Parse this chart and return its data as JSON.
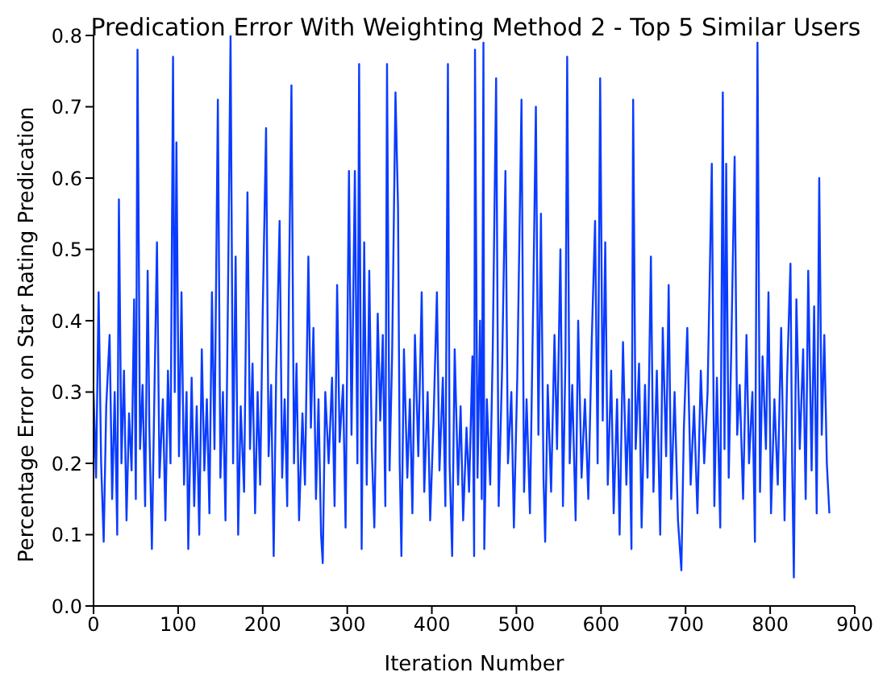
{
  "chart_data": {
    "type": "line",
    "title": "Predication Error With Weighting Method 2 - Top 5 Similar Users",
    "xlabel": "Iteration Number",
    "ylabel": "Percentage Error on Star Rating Predication",
    "x": [
      0,
      3,
      6,
      9,
      12,
      15,
      19,
      22,
      25,
      28,
      30,
      33,
      36,
      39,
      42,
      45,
      48,
      50,
      52,
      55,
      58,
      61,
      64,
      66,
      69,
      72,
      75,
      78,
      82,
      85,
      88,
      91,
      94,
      96,
      98,
      101,
      104,
      107,
      110,
      112,
      116,
      119,
      122,
      125,
      128,
      131,
      134,
      137,
      140,
      143,
      147,
      150,
      153,
      156,
      159,
      162,
      165,
      168,
      171,
      174,
      178,
      182,
      185,
      188,
      191,
      194,
      197,
      200,
      204,
      207,
      210,
      213,
      216,
      220,
      223,
      226,
      229,
      231,
      234,
      237,
      240,
      243,
      247,
      250,
      254,
      257,
      260,
      263,
      266,
      269,
      271,
      274,
      278,
      282,
      285,
      288,
      291,
      295,
      298,
      302,
      305,
      309,
      312,
      314,
      317,
      320,
      323,
      326,
      329,
      332,
      336,
      339,
      342,
      345,
      347,
      350,
      353,
      357,
      360,
      362,
      364,
      367,
      371,
      374,
      377,
      380,
      384,
      388,
      391,
      395,
      398,
      402,
      406,
      409,
      413,
      416,
      419,
      421,
      424,
      427,
      431,
      434,
      437,
      441,
      444,
      448,
      450,
      451,
      454,
      457,
      459,
      461,
      462,
      465,
      469,
      472,
      476,
      479,
      483,
      487,
      490,
      494,
      497,
      501,
      506,
      509,
      512,
      516,
      520,
      523,
      526,
      529,
      532,
      534,
      537,
      541,
      545,
      548,
      552,
      555,
      558,
      560,
      563,
      566,
      570,
      573,
      577,
      581,
      585,
      589,
      593,
      596,
      599,
      602,
      605,
      608,
      612,
      615,
      619,
      622,
      626,
      630,
      633,
      636,
      638,
      641,
      645,
      648,
      652,
      655,
      659,
      662,
      666,
      670,
      673,
      677,
      680,
      683,
      687,
      691,
      695,
      698,
      702,
      706,
      710,
      714,
      718,
      722,
      726,
      731,
      734,
      737,
      741,
      744,
      746,
      748,
      751,
      754,
      758,
      761,
      764,
      768,
      772,
      775,
      779,
      782,
      785,
      788,
      791,
      795,
      798,
      801,
      805,
      809,
      813,
      817,
      820,
      824,
      826,
      828,
      831,
      835,
      839,
      842,
      845,
      849,
      852,
      855,
      858,
      861,
      864,
      867,
      870
    ],
    "series": [
      {
        "color": "#0a3cff",
        "values": [
          0.3,
          0.18,
          0.44,
          0.2,
          0.09,
          0.28,
          0.38,
          0.15,
          0.3,
          0.1,
          0.57,
          0.2,
          0.33,
          0.12,
          0.27,
          0.19,
          0.43,
          0.15,
          0.78,
          0.22,
          0.31,
          0.14,
          0.47,
          0.25,
          0.08,
          0.3,
          0.51,
          0.18,
          0.29,
          0.12,
          0.33,
          0.2,
          0.77,
          0.3,
          0.65,
          0.21,
          0.44,
          0.17,
          0.3,
          0.08,
          0.32,
          0.14,
          0.28,
          0.1,
          0.36,
          0.19,
          0.29,
          0.13,
          0.44,
          0.22,
          0.71,
          0.18,
          0.3,
          0.12,
          0.44,
          0.8,
          0.2,
          0.49,
          0.1,
          0.28,
          0.16,
          0.58,
          0.22,
          0.34,
          0.13,
          0.3,
          0.17,
          0.41,
          0.67,
          0.21,
          0.31,
          0.07,
          0.33,
          0.54,
          0.18,
          0.29,
          0.14,
          0.44,
          0.73,
          0.2,
          0.34,
          0.12,
          0.27,
          0.17,
          0.49,
          0.25,
          0.39,
          0.15,
          0.29,
          0.1,
          0.06,
          0.3,
          0.2,
          0.32,
          0.14,
          0.45,
          0.23,
          0.31,
          0.11,
          0.61,
          0.24,
          0.61,
          0.2,
          0.76,
          0.08,
          0.51,
          0.17,
          0.47,
          0.22,
          0.11,
          0.41,
          0.26,
          0.38,
          0.14,
          0.76,
          0.19,
          0.35,
          0.72,
          0.56,
          0.2,
          0.07,
          0.36,
          0.18,
          0.29,
          0.13,
          0.38,
          0.21,
          0.44,
          0.16,
          0.3,
          0.12,
          0.26,
          0.44,
          0.19,
          0.32,
          0.14,
          0.76,
          0.2,
          0.07,
          0.36,
          0.17,
          0.28,
          0.12,
          0.25,
          0.16,
          0.35,
          0.07,
          0.78,
          0.18,
          0.4,
          0.15,
          0.79,
          0.08,
          0.29,
          0.17,
          0.36,
          0.74,
          0.14,
          0.33,
          0.61,
          0.2,
          0.3,
          0.11,
          0.32,
          0.71,
          0.16,
          0.29,
          0.13,
          0.44,
          0.7,
          0.24,
          0.55,
          0.18,
          0.09,
          0.31,
          0.16,
          0.38,
          0.22,
          0.5,
          0.14,
          0.35,
          0.77,
          0.2,
          0.31,
          0.12,
          0.4,
          0.18,
          0.29,
          0.15,
          0.37,
          0.54,
          0.2,
          0.74,
          0.26,
          0.51,
          0.17,
          0.33,
          0.13,
          0.29,
          0.1,
          0.37,
          0.17,
          0.29,
          0.08,
          0.71,
          0.22,
          0.34,
          0.11,
          0.31,
          0.18,
          0.49,
          0.16,
          0.33,
          0.1,
          0.39,
          0.21,
          0.45,
          0.15,
          0.3,
          0.12,
          0.05,
          0.25,
          0.39,
          0.17,
          0.28,
          0.13,
          0.33,
          0.2,
          0.3,
          0.62,
          0.14,
          0.32,
          0.11,
          0.72,
          0.22,
          0.62,
          0.18,
          0.36,
          0.63,
          0.24,
          0.31,
          0.15,
          0.38,
          0.2,
          0.3,
          0.09,
          0.79,
          0.16,
          0.35,
          0.22,
          0.44,
          0.13,
          0.29,
          0.17,
          0.39,
          0.12,
          0.32,
          0.48,
          0.2,
          0.04,
          0.43,
          0.22,
          0.36,
          0.15,
          0.47,
          0.19,
          0.42,
          0.13,
          0.6,
          0.24,
          0.38,
          0.2,
          0.13
        ]
      }
    ],
    "xlim": [
      0,
      900
    ],
    "xticks": [
      0,
      100,
      200,
      300,
      400,
      500,
      600,
      700,
      800,
      900
    ],
    "ylim": [
      0,
      0.8
    ],
    "yticks": [
      {
        "value": 0,
        "label": "0.0"
      },
      {
        "value": 0.1,
        "label": "0.1"
      },
      {
        "value": 0.2,
        "label": "0.2"
      },
      {
        "value": 0.3,
        "label": "0.3"
      },
      {
        "value": 0.4,
        "label": "0.4"
      },
      {
        "value": 0.5,
        "label": "0.5"
      },
      {
        "value": 0.6,
        "label": "0.6"
      },
      {
        "value": 0.7,
        "label": "0.7"
      },
      {
        "value": 0.8,
        "label": "0.8"
      }
    ],
    "grid": false,
    "marker": "none",
    "line_style": "solid"
  }
}
